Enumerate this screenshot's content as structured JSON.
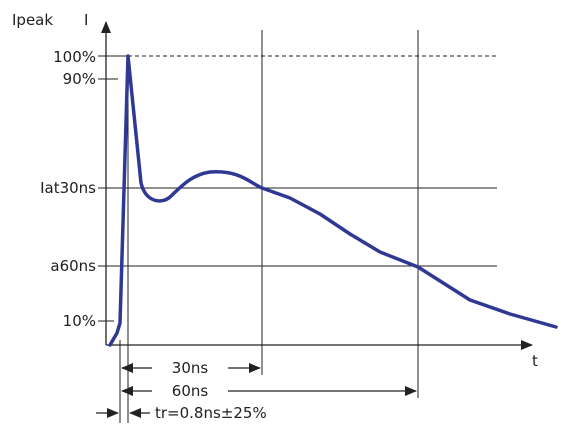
{
  "axes": {
    "y_label_left": "Ipeak",
    "y_label_right": "I",
    "x_label": "t"
  },
  "levels": {
    "l100": "100%",
    "l90": "90%",
    "lat30": "Iat30ns",
    "l60": "a60ns",
    "l10": "10%"
  },
  "spans": {
    "s30": "30ns",
    "s60": "60ns",
    "rise": "tr=0.8ns±25%"
  },
  "colors": {
    "waveform": "#2f3893",
    "lines": "#222222"
  }
}
